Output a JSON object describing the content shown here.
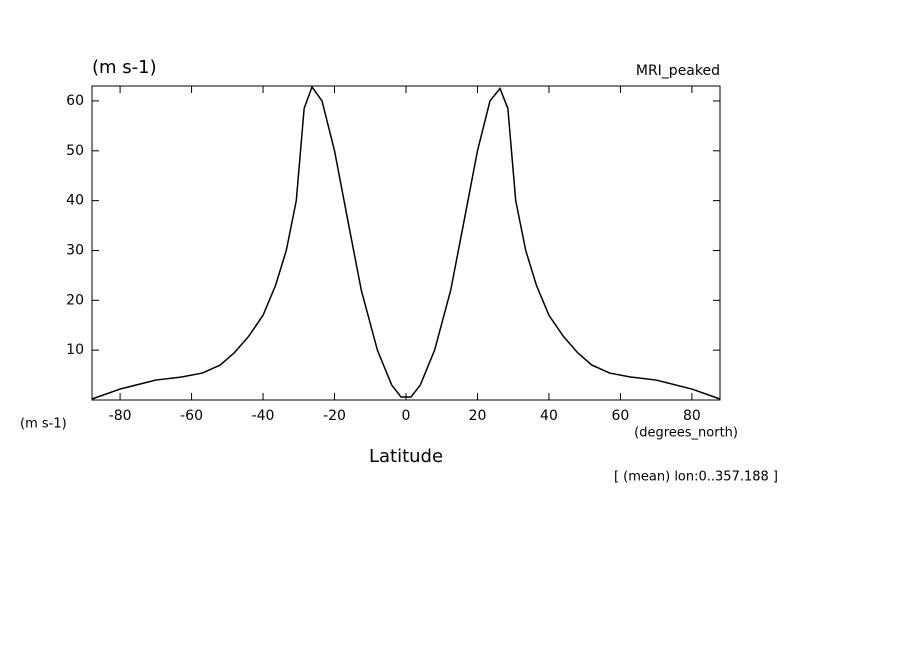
{
  "chart_data": {
    "type": "line",
    "title": "(m s-1)",
    "subtitle": "MRI_peaked",
    "y_label": "(m s-1)",
    "x_label": "Latitude",
    "x_units": "(degrees_north)",
    "annotation": "[ (mean) lon:0..357.188 ]",
    "x": [
      -87.86,
      -80,
      -70,
      -63,
      -57,
      -52,
      -48,
      -44,
      -40,
      -36.5,
      -33.5,
      -30.7,
      -28.5,
      -26.3,
      -23.5,
      -20,
      -16,
      -12.5,
      -8,
      -4,
      -1.4,
      1.4,
      4,
      8,
      12.5,
      16,
      20,
      23.5,
      26.3,
      28.5,
      30.7,
      33.5,
      36.5,
      40,
      44,
      48,
      52,
      57,
      63,
      70,
      80,
      87.86
    ],
    "series": [
      {
        "name": "MRI_peaked",
        "color": "#000000",
        "values": [
          0.2,
          2.2,
          4,
          4.6,
          5.4,
          7,
          9.5,
          12.8,
          17,
          23,
          30,
          40,
          58.5,
          62.8,
          60,
          50,
          35,
          22,
          10,
          3,
          0.6,
          0.6,
          3,
          10,
          22,
          35,
          50,
          60,
          62.5,
          58.5,
          40,
          30,
          23,
          17,
          12.8,
          9.5,
          7,
          5.4,
          4.6,
          4,
          2.2,
          0.2
        ]
      }
    ],
    "xlim": [
      -87.86,
      87.86
    ],
    "ylim": [
      0,
      63
    ],
    "xticks": [
      -80,
      -60,
      -40,
      -20,
      0,
      20,
      40,
      60,
      80
    ],
    "yticks": [
      10,
      20,
      30,
      40,
      50,
      60
    ]
  }
}
